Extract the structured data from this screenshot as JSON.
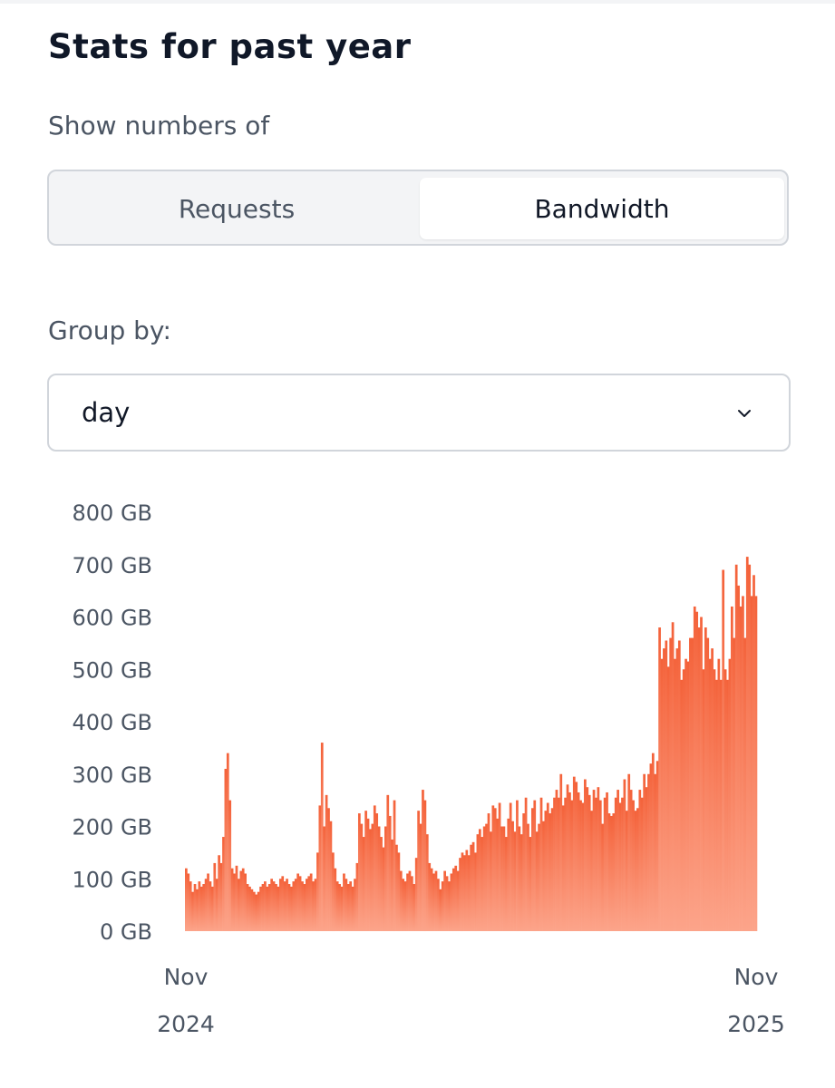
{
  "header": {
    "title": "Stats for past year"
  },
  "metric_toggle": {
    "label": "Show numbers of",
    "options": [
      "Requests",
      "Bandwidth"
    ],
    "selected": "Bandwidth"
  },
  "group_by": {
    "label": "Group by:",
    "value": "day",
    "icon": "chevron-down-icon"
  },
  "colors": {
    "bar_top": "#f4623a",
    "bar_bottom": "#fca48a",
    "accent_text": "#111827"
  },
  "chart_data": {
    "type": "bar",
    "title": "",
    "xlabel": "",
    "ylabel": "",
    "y_unit": "GB",
    "ylim": [
      0,
      800
    ],
    "yticks": [
      {
        "value": 0,
        "label": "0  GB"
      },
      {
        "value": 100,
        "label": "100  GB"
      },
      {
        "value": 200,
        "label": "200  GB"
      },
      {
        "value": 300,
        "label": "300  GB"
      },
      {
        "value": 400,
        "label": "400  GB"
      },
      {
        "value": 500,
        "label": "500  GB"
      },
      {
        "value": 600,
        "label": "600  GB"
      },
      {
        "value": 700,
        "label": "700  GB"
      },
      {
        "value": 800,
        "label": "800  GB"
      }
    ],
    "xticks": [
      {
        "month": "Nov",
        "year": "2024"
      },
      {
        "month": "Nov",
        "year": "2025"
      }
    ],
    "grid": false,
    "legend": "none",
    "granularity": "day",
    "x_start": "2024-11",
    "x_end": "2025-11",
    "values": [
      120,
      110,
      95,
      75,
      90,
      80,
      95,
      85,
      90,
      100,
      110,
      95,
      85,
      130,
      100,
      145,
      130,
      180,
      310,
      340,
      250,
      120,
      110,
      125,
      100,
      115,
      120,
      110,
      90,
      85,
      80,
      75,
      70,
      75,
      85,
      90,
      95,
      85,
      90,
      100,
      95,
      90,
      85,
      100,
      105,
      95,
      100,
      90,
      85,
      95,
      100,
      110,
      105,
      95,
      90,
      100,
      105,
      110,
      95,
      100,
      150,
      240,
      360,
      200,
      260,
      235,
      210,
      150,
      120,
      95,
      90,
      85,
      110,
      100,
      90,
      95,
      85,
      100,
      130,
      225,
      205,
      180,
      230,
      215,
      195,
      205,
      240,
      225,
      200,
      180,
      160,
      200,
      260,
      220,
      175,
      250,
      165,
      150,
      115,
      100,
      95,
      110,
      115,
      105,
      90,
      140,
      230,
      205,
      270,
      250,
      185,
      130,
      120,
      110,
      115,
      100,
      80,
      95,
      115,
      105,
      95,
      110,
      120,
      125,
      115,
      140,
      150,
      145,
      155,
      145,
      165,
      170,
      150,
      185,
      195,
      180,
      200,
      205,
      225,
      190,
      240,
      235,
      215,
      245,
      200,
      200,
      180,
      215,
      245,
      210,
      190,
      250,
      200,
      185,
      225,
      255,
      205,
      180,
      235,
      250,
      190,
      205,
      255,
      210,
      230,
      245,
      225,
      235,
      255,
      270,
      255,
      300,
      240,
      255,
      280,
      265,
      250,
      295,
      285,
      265,
      250,
      245,
      290,
      275,
      260,
      230,
      270,
      255,
      275,
      250,
      205,
      255,
      265,
      225,
      220,
      225,
      255,
      270,
      245,
      255,
      290,
      230,
      300,
      270,
      250,
      230,
      235,
      270,
      255,
      300,
      275,
      300,
      320,
      340,
      300,
      325,
      580,
      520,
      540,
      555,
      505,
      560,
      590,
      520,
      540,
      555,
      480,
      500,
      520,
      515,
      560,
      560,
      620,
      610,
      580,
      600,
      500,
      580,
      560,
      520,
      540,
      500,
      480,
      520,
      480,
      690,
      500,
      480,
      520,
      620,
      560,
      700,
      660,
      620,
      640,
      560,
      715,
      700,
      640,
      680,
      640
    ]
  }
}
